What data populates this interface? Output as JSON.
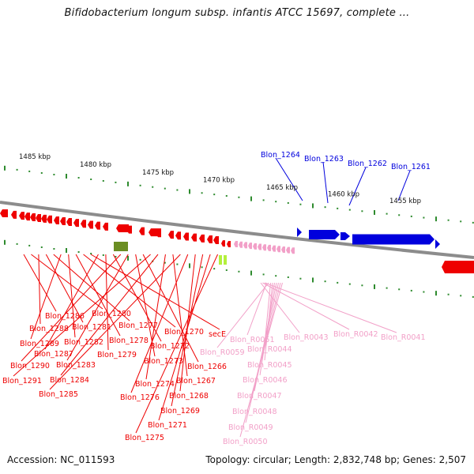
{
  "header": {
    "title": "Bifidobacterium longum subsp. infantis ATCC 15697, complete ..."
  },
  "footer": {
    "accession": "Accession: NC_011593",
    "stats": "Topology: circular; Length: 2,832,748 bp; Genes: 2,507"
  },
  "colors": {
    "backbone": "#8c8c8c",
    "forward_gene": "#0000dd",
    "reverse_gene": "#ee0000",
    "rna_gene": "#f2a0c8",
    "misc_gene_dark": "#6b8e23",
    "misc_gene_light": "#b4f03c",
    "scale_tick": "#2e8b2e"
  },
  "scale": {
    "labels": [
      "1485 kbp",
      "1480 kbp",
      "1475 kbp",
      "1470 kbp",
      "1465 kbp",
      "1460 kbp",
      "1455 kbp"
    ]
  },
  "forward_genes": [
    "Blon_1264",
    "Blon_1263",
    "Blon_1262",
    "Blon_1261"
  ],
  "reverse_genes": [
    "Blon_1286",
    "Blon_1280",
    "Blon_1288",
    "Blon_1281",
    "Blon_1277",
    "Blon_1289",
    "Blon_1282",
    "Blon_1278",
    "Blon_1270",
    "secE",
    "Blon_1287",
    "Blon_1279",
    "Blon_1272",
    "Blon_1290",
    "Blon_1283",
    "Blon_1273",
    "Blon_1266",
    "Blon_1291",
    "Blon_1284",
    "Blon_1274",
    "Blon_1267",
    "Blon_1285",
    "Blon_1276",
    "Blon_1268",
    "Blon_1269",
    "Blon_1271",
    "Blon_1275"
  ],
  "rna_genes": [
    "Blon_R0043",
    "Blon_R0042",
    "Blon_R0041",
    "Blon_R0051",
    "Blon_R0059",
    "Blon_R0044",
    "Blon_R0045",
    "Blon_R0046",
    "Blon_R0047",
    "Blon_R0048",
    "Blon_R0049",
    "Blon_R0050"
  ]
}
